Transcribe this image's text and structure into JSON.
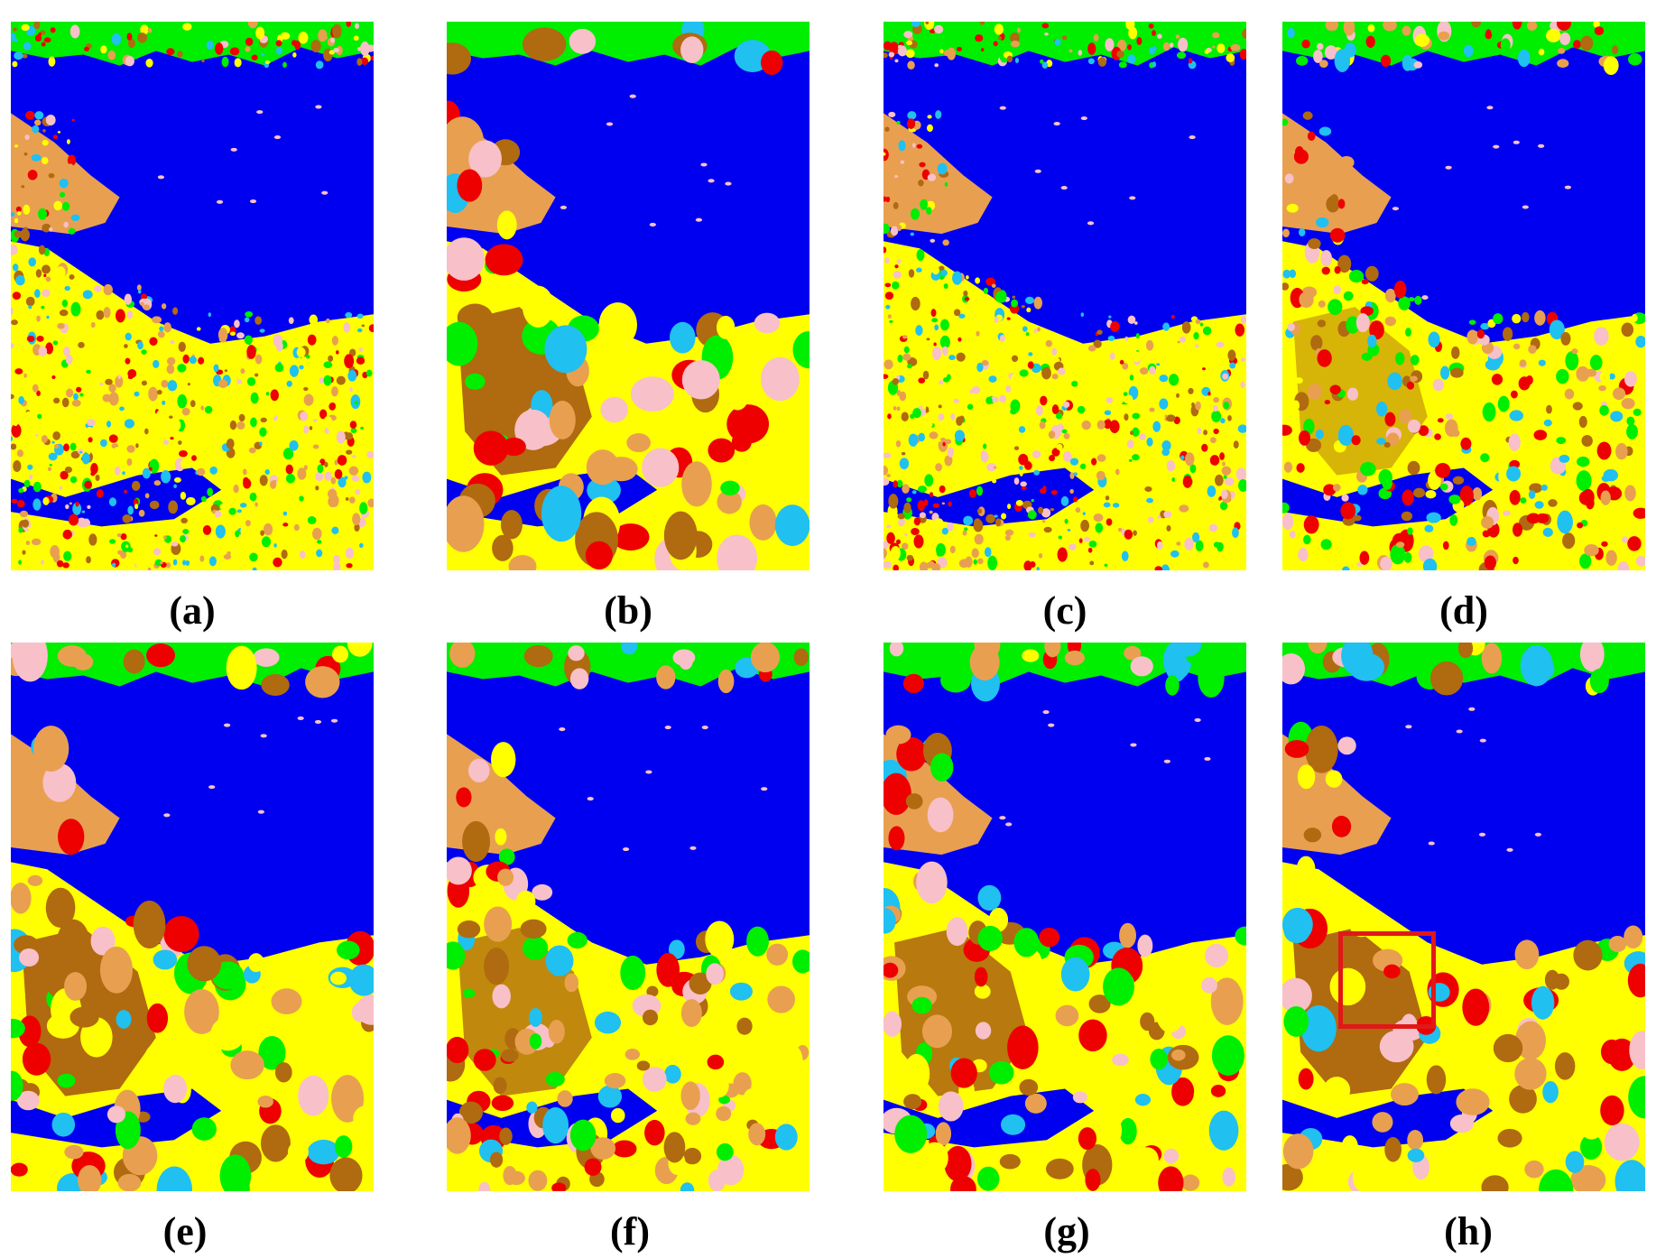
{
  "figure": {
    "panels": [
      {
        "id": "a",
        "label": "(a)"
      },
      {
        "id": "b",
        "label": "(b)"
      },
      {
        "id": "c",
        "label": "(c)"
      },
      {
        "id": "d",
        "label": "(d)"
      },
      {
        "id": "e",
        "label": "(e)"
      },
      {
        "id": "f",
        "label": "(f)"
      },
      {
        "id": "g",
        "label": "(g)"
      },
      {
        "id": "h",
        "label": "(h)"
      }
    ],
    "class_colors": {
      "water": "#0000f0",
      "land_yellow": "#ffff00",
      "vegetation_green": "#00ee00",
      "lightblue": "#20c0f0",
      "brown_urban": "#b06a10",
      "tan": "#e8a050",
      "red": "#ee0000",
      "pink": "#f8c0c8"
    },
    "highlight_color": "#e01818"
  }
}
